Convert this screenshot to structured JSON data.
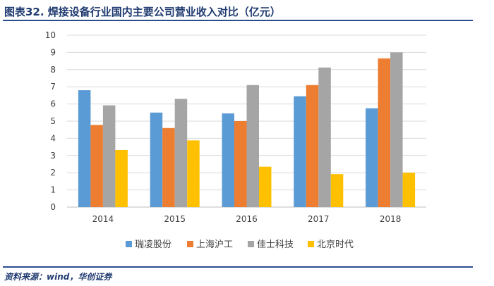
{
  "header": {
    "title": "图表32.  焊接设备行业国内主要公司营业收入对比（亿元）"
  },
  "footer": {
    "source": "资料来源：wind，华创证券"
  },
  "colors": {
    "title": "#1f3a70",
    "rule": "#2a4d8f",
    "grid": "#d9d9d9"
  },
  "chart_data": {
    "type": "bar",
    "title": "焊接设备行业国内主要公司营业收入对比（亿元）",
    "xlabel": "",
    "ylabel": "",
    "ylim": [
      0,
      10
    ],
    "yticks": [
      "0",
      "1",
      "2",
      "3",
      "4",
      "5",
      "6",
      "7",
      "8",
      "9",
      "10"
    ],
    "categories": [
      "2014",
      "2015",
      "2016",
      "2017",
      "2018"
    ],
    "series": [
      {
        "name": "瑞凌股份",
        "color": "#5b9bd5",
        "values": [
          6.8,
          5.5,
          5.45,
          6.45,
          5.75
        ]
      },
      {
        "name": "上海沪工",
        "color": "#ed7d31",
        "values": [
          4.78,
          4.6,
          5.0,
          7.1,
          8.65
        ]
      },
      {
        "name": "佳士科技",
        "color": "#a5a5a5",
        "values": [
          5.92,
          6.3,
          7.1,
          8.12,
          9.0
        ]
      },
      {
        "name": "北京时代",
        "color": "#ffc000",
        "values": [
          3.32,
          3.88,
          2.35,
          1.92,
          2.0
        ]
      }
    ],
    "grid": true,
    "legend": "bottom"
  }
}
